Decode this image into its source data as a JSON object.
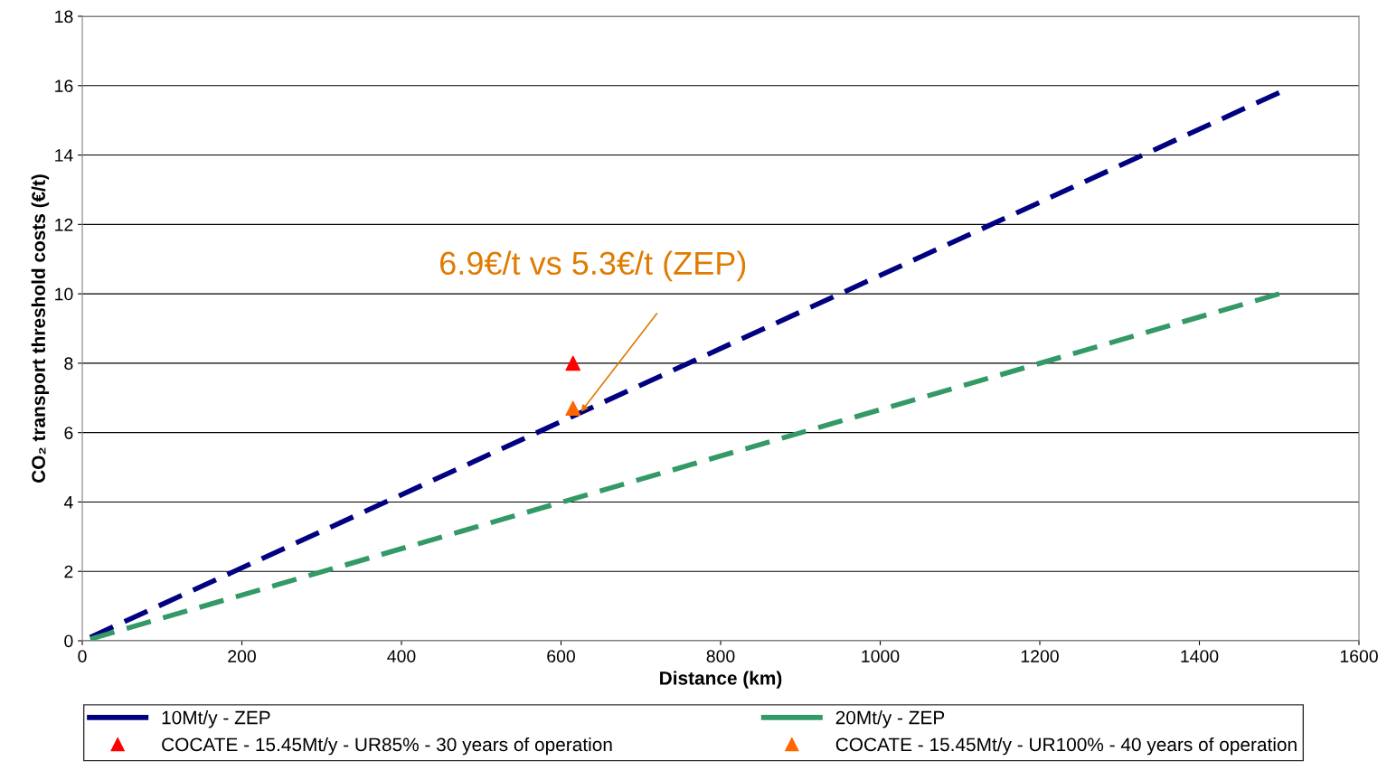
{
  "chart_data": {
    "type": "line",
    "xlabel": "Distance (km)",
    "ylabel": "CO₂ transport threshold costs (€/t)",
    "xlim": [
      0,
      1600
    ],
    "xticks": [
      0,
      200,
      400,
      600,
      800,
      1000,
      1200,
      1400,
      1600
    ],
    "ylim": [
      0,
      18
    ],
    "yticks": [
      0,
      2,
      4,
      6,
      8,
      10,
      12,
      14,
      16,
      18
    ],
    "grid": "y",
    "legend": "bottom",
    "line_style": "dashed",
    "series": [
      {
        "name": "10Mt/y - ZEP",
        "color": "#000080",
        "x": [
          10,
          1500
        ],
        "values": [
          0.1,
          15.8
        ]
      },
      {
        "name": "20Mt/y - ZEP",
        "color": "#339966",
        "x": [
          10,
          1500
        ],
        "values": [
          0.05,
          10.0
        ]
      },
      {
        "name": "COCATE - 15.45Mt/y - UR85% - 30 years of operation",
        "type": "scatter",
        "marker": "triangle",
        "color": "#ff0000",
        "x": [
          615
        ],
        "values": [
          8.0
        ]
      },
      {
        "name": "COCATE - 15.45Mt/y - UR100% - 40 years of operation",
        "type": "scatter",
        "marker": "triangle",
        "color": "#ff6600",
        "x": [
          615
        ],
        "values": [
          6.7
        ]
      }
    ],
    "annotations": [
      {
        "text": "6.9€/t vs 5.3€/t (ZEP)",
        "x": 625,
        "y": 6.6
      }
    ]
  }
}
